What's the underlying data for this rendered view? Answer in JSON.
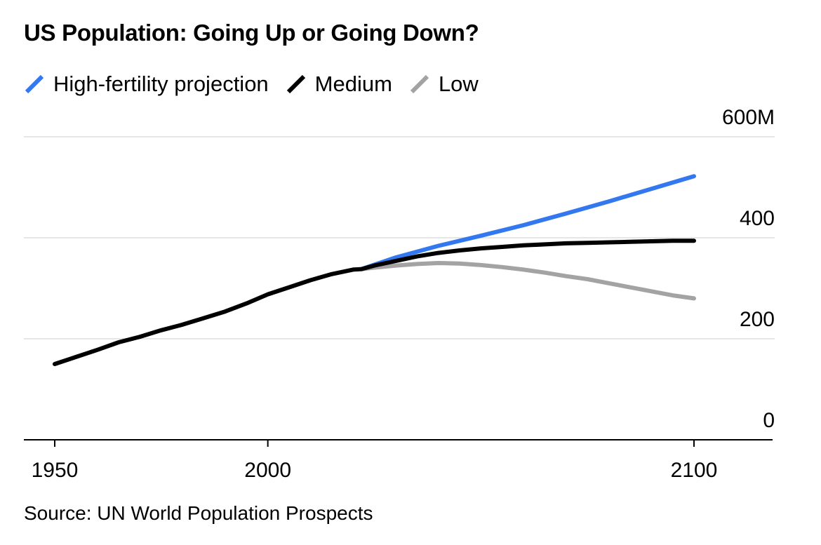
{
  "title": "US Population: Going Up or Going Down?",
  "source": "Source: UN World Population Prospects",
  "chart_data": {
    "type": "line",
    "title": "US Population: Going Up or Going Down?",
    "xlabel": "",
    "ylabel": "",
    "xlim": [
      1943,
      2119
    ],
    "ylim": [
      0,
      600
    ],
    "x_ticks": [
      {
        "value": 1950,
        "label": "1950"
      },
      {
        "value": 2000,
        "label": "2000"
      },
      {
        "value": 2100,
        "label": "2100"
      }
    ],
    "y_ticks": [
      {
        "value": 600,
        "label": "600M"
      },
      {
        "value": 400,
        "label": "400"
      },
      {
        "value": 200,
        "label": "200"
      },
      {
        "value": 0,
        "label": "0"
      }
    ],
    "grid": true,
    "legend_position": "top-left",
    "series": [
      {
        "name": "High-fertility projection",
        "color": "#3478f0",
        "x": [
          2022,
          2030,
          2040,
          2050,
          2060,
          2070,
          2080,
          2090,
          2100
        ],
        "y": [
          338,
          361,
          384,
          404,
          425,
          448,
          472,
          497,
          522
        ]
      },
      {
        "name": "Medium",
        "color": "#000000",
        "x": [
          1950,
          1955,
          1960,
          1965,
          1970,
          1975,
          1980,
          1985,
          1990,
          1995,
          2000,
          2005,
          2010,
          2015,
          2020,
          2022,
          2025,
          2030,
          2035,
          2040,
          2045,
          2050,
          2055,
          2060,
          2065,
          2070,
          2075,
          2080,
          2085,
          2090,
          2095,
          2100
        ],
        "y": [
          150,
          164,
          178,
          193,
          204,
          217,
          228,
          241,
          254,
          270,
          288,
          302,
          316,
          328,
          337,
          338,
          345,
          354,
          363,
          370,
          375,
          379,
          382,
          385,
          387,
          389,
          390,
          391,
          392,
          393,
          394,
          394
        ]
      },
      {
        "name": "Low",
        "color": "#a3a3a3",
        "x": [
          2022,
          2025,
          2030,
          2035,
          2040,
          2045,
          2050,
          2055,
          2060,
          2065,
          2070,
          2075,
          2080,
          2085,
          2090,
          2095,
          2100
        ],
        "y": [
          338,
          341,
          345,
          348,
          350,
          349,
          346,
          342,
          337,
          331,
          324,
          318,
          310,
          302,
          294,
          286,
          280
        ]
      }
    ]
  }
}
